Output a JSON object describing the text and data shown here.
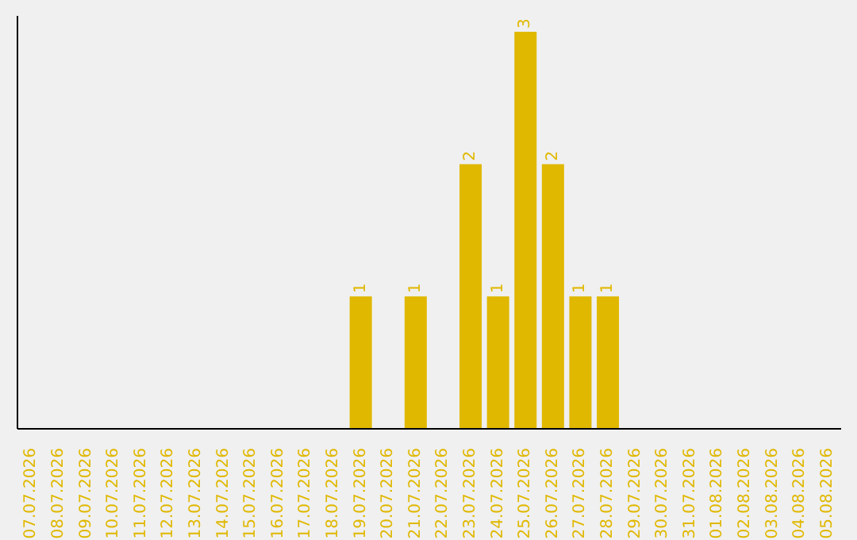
{
  "chart_data": {
    "type": "bar",
    "categories": [
      "07.07.2026",
      "08.07.2026",
      "09.07.2026",
      "10.07.2026",
      "11.07.2026",
      "12.07.2026",
      "13.07.2026",
      "14.07.2026",
      "15.07.2026",
      "16.07.2026",
      "17.07.2026",
      "18.07.2026",
      "19.07.2026",
      "20.07.2026",
      "21.07.2026",
      "22.07.2026",
      "23.07.2026",
      "24.07.2026",
      "25.07.2026",
      "26.07.2026",
      "27.07.2026",
      "28.07.2026",
      "29.07.2026",
      "30.07.2026",
      "31.07.2026",
      "01.08.2026",
      "02.08.2026",
      "03.08.2026",
      "04.08.2026",
      "05.08.2026"
    ],
    "values": [
      null,
      null,
      null,
      null,
      null,
      null,
      null,
      null,
      null,
      null,
      null,
      null,
      1,
      null,
      1,
      null,
      2,
      1,
      3,
      2,
      1,
      1,
      null,
      null,
      null,
      null,
      null,
      null,
      null,
      null
    ],
    "color": "#e0b800",
    "data_labels": true,
    "grid": false
  }
}
